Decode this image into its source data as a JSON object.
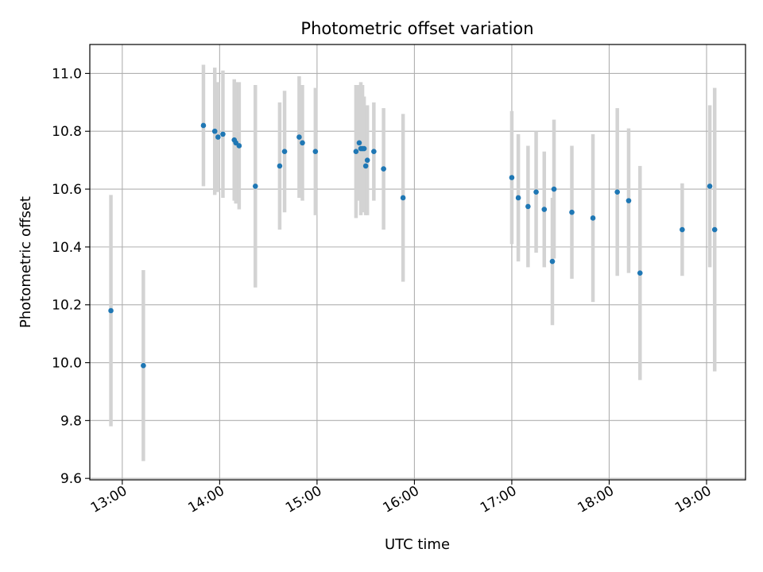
{
  "chart_data": {
    "type": "scatter",
    "title": "Photometric offset variation",
    "xlabel": "UTC time",
    "ylabel": "Photometric offset",
    "xlim": [
      "12:40",
      "19:24"
    ],
    "ylim": [
      9.595,
      11.1
    ],
    "grid": true,
    "legend": "none",
    "x_ticks": [
      "13:00",
      "14:00",
      "15:00",
      "16:00",
      "17:00",
      "18:00",
      "19:00"
    ],
    "y_ticks": [
      "9.6",
      "9.8",
      "10.0",
      "10.2",
      "10.4",
      "10.6",
      "10.8",
      "11.0"
    ],
    "colors": {
      "point": "#1f77b4",
      "errorbar": "#d3d3d3",
      "grid": "#b0b0b0"
    },
    "series": [
      {
        "points": [
          {
            "x": "12:53",
            "y": 10.18,
            "err": 0.4
          },
          {
            "x": "13:13",
            "y": 9.99,
            "err": 0.33
          },
          {
            "x": "13:50",
            "y": 10.82,
            "err": 0.21
          },
          {
            "x": "13:57",
            "y": 10.8,
            "err": 0.22
          },
          {
            "x": "13:59",
            "y": 10.78,
            "err": 0.19
          },
          {
            "x": "14:02",
            "y": 10.79,
            "err": 0.22
          },
          {
            "x": "14:09",
            "y": 10.77,
            "err": 0.21
          },
          {
            "x": "14:10",
            "y": 10.76,
            "err": 0.21
          },
          {
            "x": "14:12",
            "y": 10.75,
            "err": 0.22
          },
          {
            "x": "14:22",
            "y": 10.61,
            "err": 0.35
          },
          {
            "x": "14:37",
            "y": 10.68,
            "err": 0.22
          },
          {
            "x": "14:40",
            "y": 10.73,
            "err": 0.21
          },
          {
            "x": "14:49",
            "y": 10.78,
            "err": 0.21
          },
          {
            "x": "14:51",
            "y": 10.76,
            "err": 0.2
          },
          {
            "x": "14:59",
            "y": 10.73,
            "err": 0.22
          },
          {
            "x": "15:24",
            "y": 10.73,
            "err": 0.23
          },
          {
            "x": "15:26",
            "y": 10.76,
            "err": 0.2
          },
          {
            "x": "15:27",
            "y": 10.74,
            "err": 0.23
          },
          {
            "x": "15:28",
            "y": 10.74,
            "err": 0.22
          },
          {
            "x": "15:29",
            "y": 10.74,
            "err": 0.18
          },
          {
            "x": "15:30",
            "y": 10.68,
            "err": 0.17
          },
          {
            "x": "15:31",
            "y": 10.7,
            "err": 0.19
          },
          {
            "x": "15:35",
            "y": 10.73,
            "err": 0.17
          },
          {
            "x": "15:41",
            "y": 10.67,
            "err": 0.21
          },
          {
            "x": "15:53",
            "y": 10.57,
            "err": 0.29
          },
          {
            "x": "17:00",
            "y": 10.64,
            "err": 0.23
          },
          {
            "x": "17:04",
            "y": 10.57,
            "err": 0.22
          },
          {
            "x": "17:10",
            "y": 10.54,
            "err": 0.21
          },
          {
            "x": "17:15",
            "y": 10.59,
            "err": 0.21
          },
          {
            "x": "17:20",
            "y": 10.53,
            "err": 0.2
          },
          {
            "x": "17:25",
            "y": 10.35,
            "err": 0.22
          },
          {
            "x": "17:26",
            "y": 10.6,
            "err": 0.24
          },
          {
            "x": "17:37",
            "y": 10.52,
            "err": 0.23
          },
          {
            "x": "17:50",
            "y": 10.5,
            "err": 0.29
          },
          {
            "x": "18:05",
            "y": 10.59,
            "err": 0.29
          },
          {
            "x": "18:12",
            "y": 10.56,
            "err": 0.25
          },
          {
            "x": "18:19",
            "y": 10.31,
            "err": 0.37
          },
          {
            "x": "18:45",
            "y": 10.46,
            "err": 0.16
          },
          {
            "x": "19:02",
            "y": 10.61,
            "err": 0.28
          },
          {
            "x": "19:05",
            "y": 10.46,
            "err": 0.49
          }
        ]
      }
    ]
  }
}
